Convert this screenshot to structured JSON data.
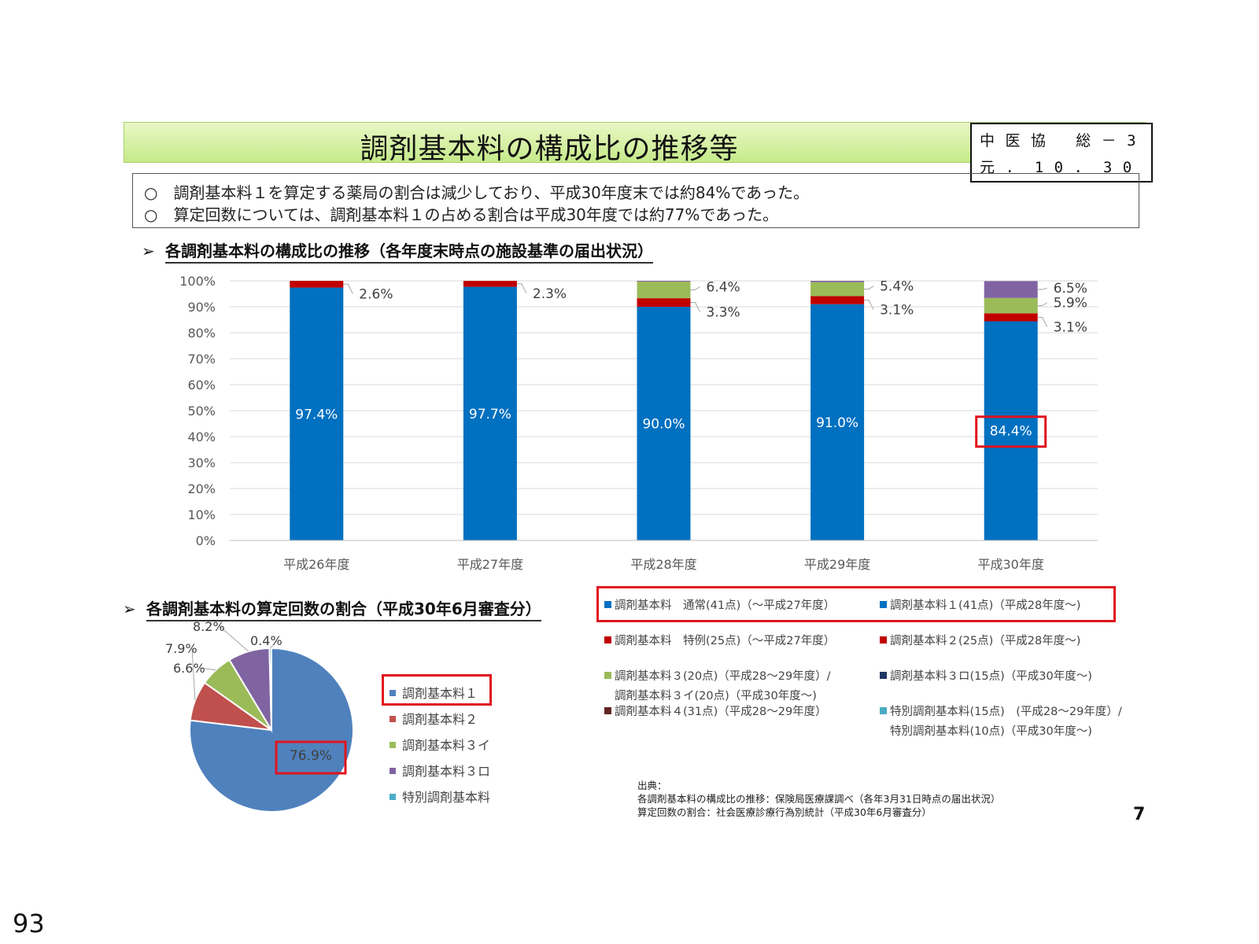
{
  "header": {
    "title": "調剤基本料の構成比の推移等",
    "stamp_line1": "中 医 協   総 － 3",
    "stamp_line2": "元 .  1 0 .  3 0"
  },
  "summary": {
    "line1": "○　調剤基本料１を算定する薬局の割合は減少しており、平成30年度末では約84%であった。",
    "line2": "○　算定回数については、調剤基本料１の占める割合は平成30年度では約77%であった。"
  },
  "sections": {
    "arrow": "➢",
    "bar_heading": "各調剤基本料の構成比の推移（各年度末時点の施設基準の届出状況）",
    "pie_heading": "各調剤基本料の算定回数の割合（平成30年6月審査分）"
  },
  "colors": {
    "blue": "#0070c0",
    "red": "#c00000",
    "green": "#9bbb59",
    "navy": "#1f3864",
    "purple": "#8064a2",
    "darkred": "#632523",
    "teal": "#4bacc6",
    "highlight": "#e0141e",
    "pie_blue": "#4f81bd",
    "pie_red": "#c0504d",
    "pie_green": "#9bbb59",
    "pie_purple": "#8064a2",
    "pie_teal": "#4bacc6"
  },
  "legend": [
    {
      "label": "調剤基本料　通常(41点)（～平成27年度）",
      "color": "#0070c0"
    },
    {
      "label": "調剤基本料１(41点)（平成28年度～)",
      "color": "#0070c0"
    },
    {
      "label": "調剤基本料　特例(25点)（～平成27年度）",
      "color": "#c00000"
    },
    {
      "label": "調剤基本料２(25点)（平成28年度～)",
      "color": "#c00000"
    },
    {
      "label": "調剤基本料３(20点)（平成28～29年度）/",
      "color": "#9bbb59"
    },
    {
      "label": "調剤基本料３ロ(15点)（平成30年度～)",
      "color": "#1f3864"
    },
    {
      "label": "調剤基本料３イ(20点)（平成30年度～)",
      "color": ""
    },
    {
      "label": "調剤基本料４(31点)（平成28～29年度）",
      "color": "#632523"
    },
    {
      "label": "特別調剤基本料(15点)　(平成28～29年度）/",
      "color": "#4bacc6"
    },
    {
      "label": "特別調剤基本料(10点)（平成30年度～)",
      "color": ""
    }
  ],
  "chart_data": [
    {
      "type": "bar",
      "stacked": true,
      "categories": [
        "平成26年度",
        "平成27年度",
        "平成28年度",
        "平成29年度",
        "平成30年度"
      ],
      "ylim": [
        0,
        100
      ],
      "yticks": [
        "0%",
        "10%",
        "20%",
        "30%",
        "40%",
        "50%",
        "60%",
        "70%",
        "80%",
        "90%",
        "100%"
      ],
      "grid": true,
      "series": [
        {
          "color": "#0070c0",
          "values": [
            97.4,
            97.7,
            90.0,
            91.0,
            84.4
          ],
          "labels": [
            "97.4%",
            "97.7%",
            "90.0%",
            "91.0%",
            "84.4%"
          ]
        },
        {
          "color": "#c00000",
          "values": [
            2.6,
            2.3,
            3.3,
            3.1,
            3.1
          ],
          "labels": [
            "2.6%",
            "2.3%",
            "3.3%",
            "3.1%",
            "3.1%"
          ]
        },
        {
          "color": "#9bbb59",
          "values": [
            0,
            0,
            6.4,
            5.4,
            5.9
          ],
          "labels": [
            "",
            "",
            "6.4%",
            "5.4%",
            "5.9%"
          ]
        },
        {
          "color": "#8064a2",
          "values": [
            0,
            0,
            0.3,
            0.5,
            6.5
          ],
          "labels": [
            "",
            "",
            "",
            "",
            "6.5%"
          ]
        }
      ],
      "highlight_label": "84.4%"
    },
    {
      "type": "pie",
      "slices": [
        {
          "label": "調剤基本料１",
          "value": 76.9,
          "text": "76.9%",
          "color": "#4f81bd"
        },
        {
          "label": "調剤基本料２",
          "value": 7.9,
          "text": "7.9%",
          "color": "#c0504d"
        },
        {
          "label": "調剤基本料３イ",
          "value": 6.6,
          "text": "6.6%",
          "color": "#9bbb59"
        },
        {
          "label": "調剤基本料３ロ",
          "value": 8.2,
          "text": "8.2%",
          "color": "#8064a2"
        },
        {
          "label": "特別調剤基本料",
          "value": 0.4,
          "text": "0.4%",
          "color": "#4bacc6"
        }
      ]
    }
  ],
  "source": {
    "heading": "出典：",
    "line1": "各調剤基本料の構成比の推移：保険局医療課調べ（各年3月31日時点の届出状況）",
    "line2": "算定回数の割合：社会医療診療行為別統計（平成30年6月審査分）"
  },
  "page_number": "7",
  "document_number": "93"
}
